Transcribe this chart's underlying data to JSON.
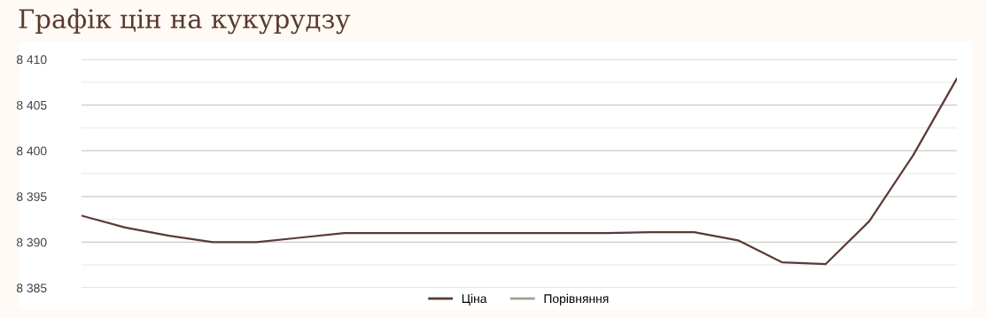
{
  "chart_data": {
    "type": "line",
    "title": "Графік цін на кукурудзу",
    "categories": [
      null,
      null,
      null,
      null,
      null,
      null,
      null,
      null,
      null,
      null,
      null,
      null,
      null,
      null,
      null,
      null,
      null,
      null,
      null,
      null,
      null
    ],
    "series": [
      {
        "name": "Ціна",
        "color": "#5b3a36",
        "values": [
          8392.9,
          8391.6,
          8390.7,
          8390.0,
          8390.0,
          8390.5,
          8391.0,
          8391.0,
          8391.0,
          8391.0,
          8391.0,
          8391.0,
          8391.0,
          8391.1,
          8391.1,
          8390.2,
          8387.8,
          8387.6,
          8392.3,
          8399.5,
          8407.9
        ]
      },
      {
        "name": "Порівняння",
        "color": "#9aa58c",
        "values": [
          null,
          null,
          null,
          null,
          null,
          null,
          null,
          null,
          null,
          null,
          null,
          null,
          null,
          null,
          null,
          null,
          null,
          null,
          null,
          null,
          null
        ]
      }
    ],
    "ylim": [
      8385,
      8410
    ],
    "yticks": [
      {
        "value": 8385,
        "label": "8 385"
      },
      {
        "value": 8387.5,
        "label": null
      },
      {
        "value": 8390,
        "label": "8 390"
      },
      {
        "value": 8392.5,
        "label": null
      },
      {
        "value": 8395,
        "label": "8 395"
      },
      {
        "value": 8397.5,
        "label": null
      },
      {
        "value": 8400,
        "label": "8 400"
      },
      {
        "value": 8402.5,
        "label": null
      },
      {
        "value": 8405,
        "label": "8 405"
      },
      {
        "value": 8407.5,
        "label": null
      },
      {
        "value": 8410,
        "label": "8 410"
      }
    ],
    "tick_labels": "y",
    "grid": "y",
    "legend": "bottom",
    "marker": "none",
    "line_style": "solid"
  }
}
